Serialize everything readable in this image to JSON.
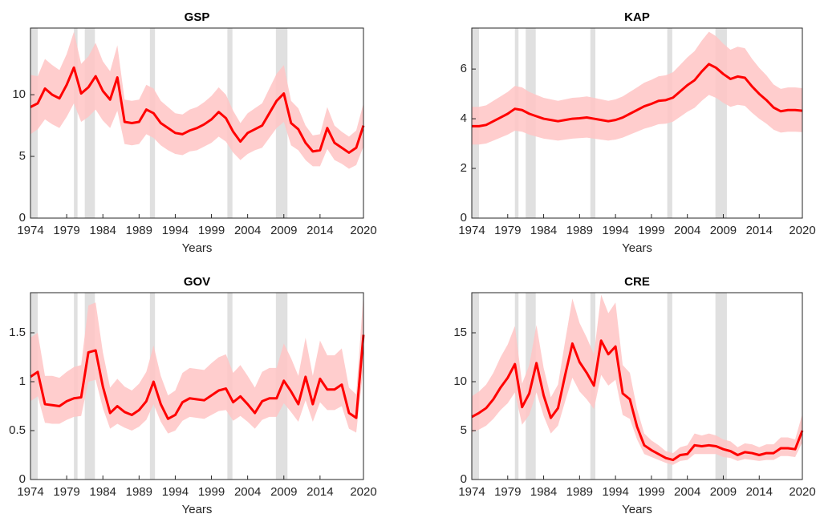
{
  "chart_data": [
    {
      "type": "band-line",
      "title": "GSP",
      "x_label": "Years",
      "color": "#ff0000",
      "band_color": "#ffc4c4",
      "shade_color": "#e0e0e0",
      "x": [
        1974,
        1975,
        1976,
        1977,
        1978,
        1979,
        1980,
        1981,
        1982,
        1983,
        1984,
        1985,
        1986,
        1987,
        1988,
        1989,
        1990,
        1991,
        1992,
        1993,
        1994,
        1995,
        1996,
        1997,
        1998,
        1999,
        2000,
        2001,
        2002,
        2003,
        2004,
        2005,
        2006,
        2007,
        2008,
        2009,
        2010,
        2011,
        2012,
        2013,
        2014,
        2015,
        2016,
        2017,
        2018,
        2019,
        2020
      ],
      "values": [
        9.0,
        9.3,
        10.5,
        10.0,
        9.7,
        10.8,
        12.2,
        10.1,
        10.6,
        11.5,
        10.3,
        9.6,
        11.4,
        7.8,
        7.7,
        7.8,
        8.8,
        8.5,
        7.7,
        7.3,
        6.9,
        6.8,
        7.1,
        7.3,
        7.6,
        8.0,
        8.6,
        8.1,
        7.0,
        6.2,
        6.9,
        7.2,
        7.5,
        8.5,
        9.5,
        10.1,
        7.7,
        7.2,
        6.1,
        5.4,
        5.5,
        7.3,
        6.1,
        5.7,
        5.3,
        5.7,
        7.5
      ],
      "lower": [
        6.8,
        7.2,
        8.0,
        7.6,
        7.3,
        8.2,
        9.3,
        7.8,
        8.2,
        8.8,
        7.9,
        7.3,
        8.7,
        6.0,
        5.9,
        6.0,
        6.8,
        6.5,
        5.9,
        5.5,
        5.2,
        5.1,
        5.4,
        5.5,
        5.8,
        6.1,
        6.6,
        6.2,
        5.3,
        4.7,
        5.2,
        5.5,
        5.7,
        6.5,
        7.3,
        7.8,
        5.9,
        5.5,
        4.7,
        4.2,
        4.2,
        5.6,
        4.7,
        4.4,
        4.0,
        4.3,
        5.8
      ],
      "upper": [
        11.6,
        11.5,
        12.9,
        12.4,
        12.0,
        13.3,
        15.1,
        12.5,
        13.1,
        14.2,
        12.7,
        11.9,
        14.0,
        9.6,
        9.5,
        9.6,
        10.8,
        10.5,
        9.5,
        9.0,
        8.5,
        8.4,
        8.8,
        9.0,
        9.4,
        9.9,
        10.6,
        10.0,
        8.7,
        7.7,
        8.5,
        8.9,
        9.3,
        10.5,
        11.7,
        12.4,
        9.5,
        8.9,
        7.5,
        6.7,
        6.8,
        9.0,
        7.5,
        7.0,
        6.6,
        7.1,
        9.3
      ],
      "shaded_periods": [
        [
          1974,
          1975
        ],
        [
          1980,
          1980.5
        ],
        [
          1981.5,
          1982.9
        ],
        [
          1990.5,
          1991.2
        ],
        [
          2001.2,
          2001.9
        ],
        [
          2007.9,
          2009.5
        ]
      ],
      "xlim": [
        1974,
        2020
      ],
      "xticks": [
        1974,
        1979,
        1984,
        1989,
        1994,
        1999,
        2004,
        2009,
        2014,
        2020
      ],
      "ylim": [
        0,
        15.4
      ],
      "yticks": [
        0,
        5,
        10
      ]
    },
    {
      "type": "band-line",
      "title": "KAP",
      "x_label": "Years",
      "color": "#ff0000",
      "band_color": "#ffc4c4",
      "shade_color": "#e0e0e0",
      "x": [
        1974,
        1975,
        1976,
        1977,
        1978,
        1979,
        1980,
        1981,
        1982,
        1983,
        1984,
        1985,
        1986,
        1987,
        1988,
        1989,
        1990,
        1991,
        1992,
        1993,
        1994,
        1995,
        1996,
        1997,
        1998,
        1999,
        2000,
        2001,
        2002,
        2003,
        2004,
        2005,
        2006,
        2007,
        2008,
        2009,
        2010,
        2011,
        2012,
        2013,
        2014,
        2015,
        2016,
        2017,
        2018,
        2019,
        2020
      ],
      "values": [
        3.7,
        3.7,
        3.75,
        3.9,
        4.05,
        4.2,
        4.4,
        4.35,
        4.2,
        4.1,
        4.0,
        3.95,
        3.9,
        3.95,
        4.0,
        4.02,
        4.05,
        4.0,
        3.95,
        3.9,
        3.95,
        4.05,
        4.2,
        4.35,
        4.5,
        4.6,
        4.72,
        4.75,
        4.85,
        5.1,
        5.35,
        5.55,
        5.9,
        6.2,
        6.05,
        5.8,
        5.6,
        5.7,
        5.65,
        5.3,
        5.0,
        4.75,
        4.45,
        4.3,
        4.35,
        4.35,
        4.32
      ],
      "lower": [
        2.96,
        2.96,
        3.0,
        3.12,
        3.24,
        3.36,
        3.52,
        3.48,
        3.36,
        3.28,
        3.2,
        3.16,
        3.12,
        3.16,
        3.2,
        3.22,
        3.24,
        3.2,
        3.16,
        3.12,
        3.16,
        3.24,
        3.36,
        3.48,
        3.6,
        3.68,
        3.78,
        3.8,
        3.88,
        4.08,
        4.28,
        4.44,
        4.72,
        4.96,
        4.84,
        4.64,
        4.48,
        4.56,
        4.52,
        4.24,
        4.0,
        3.8,
        3.56,
        3.44,
        3.48,
        3.48,
        3.46
      ],
      "upper": [
        4.48,
        4.48,
        4.54,
        4.72,
        4.9,
        5.08,
        5.32,
        5.26,
        5.08,
        4.96,
        4.84,
        4.78,
        4.72,
        4.78,
        4.84,
        4.86,
        4.9,
        4.84,
        4.78,
        4.72,
        4.78,
        4.9,
        5.08,
        5.26,
        5.45,
        5.57,
        5.71,
        5.75,
        5.87,
        6.17,
        6.47,
        6.72,
        7.14,
        7.5,
        7.32,
        7.02,
        6.78,
        6.9,
        6.84,
        6.41,
        6.05,
        5.75,
        5.38,
        5.2,
        5.26,
        5.26,
        5.23
      ],
      "shaded_periods": [
        [
          1974,
          1975
        ],
        [
          1980,
          1980.5
        ],
        [
          1981.5,
          1982.9
        ],
        [
          1990.5,
          1991.2
        ],
        [
          2001.2,
          2001.9
        ],
        [
          2007.9,
          2009.5
        ]
      ],
      "xlim": [
        1974,
        2020
      ],
      "xticks": [
        1974,
        1979,
        1984,
        1989,
        1994,
        1999,
        2004,
        2009,
        2014,
        2020
      ],
      "ylim": [
        0,
        7.65
      ],
      "yticks": [
        0,
        2,
        4,
        6
      ]
    },
    {
      "type": "band-line",
      "title": "GOV",
      "x_label": "Years",
      "color": "#ff0000",
      "band_color": "#ffc4c4",
      "shade_color": "#e0e0e0",
      "x": [
        1974,
        1975,
        1976,
        1977,
        1978,
        1979,
        1980,
        1981,
        1982,
        1983,
        1984,
        1985,
        1986,
        1987,
        1988,
        1989,
        1990,
        1991,
        1992,
        1993,
        1994,
        1995,
        1996,
        1997,
        1998,
        1999,
        2000,
        2001,
        2002,
        2003,
        2004,
        2005,
        2006,
        2007,
        2008,
        2009,
        2010,
        2011,
        2012,
        2013,
        2014,
        2015,
        2016,
        2017,
        2018,
        2019,
        2020
      ],
      "values": [
        1.05,
        1.1,
        0.77,
        0.76,
        0.75,
        0.8,
        0.83,
        0.84,
        1.3,
        1.32,
        0.95,
        0.68,
        0.75,
        0.69,
        0.66,
        0.71,
        0.8,
        1.0,
        0.77,
        0.62,
        0.66,
        0.79,
        0.83,
        0.82,
        0.81,
        0.86,
        0.91,
        0.93,
        0.79,
        0.85,
        0.77,
        0.68,
        0.8,
        0.83,
        0.83,
        1.01,
        0.9,
        0.77,
        1.05,
        0.77,
        1.03,
        0.92,
        0.92,
        0.97,
        0.68,
        0.63,
        1.48
      ],
      "lower": [
        0.8,
        0.85,
        0.58,
        0.57,
        0.57,
        0.61,
        0.64,
        0.65,
        1.0,
        1.02,
        0.73,
        0.52,
        0.57,
        0.53,
        0.5,
        0.54,
        0.61,
        0.77,
        0.59,
        0.47,
        0.5,
        0.6,
        0.64,
        0.63,
        0.62,
        0.66,
        0.7,
        0.71,
        0.6,
        0.65,
        0.59,
        0.52,
        0.61,
        0.64,
        0.64,
        0.78,
        0.69,
        0.59,
        0.81,
        0.59,
        0.79,
        0.71,
        0.71,
        0.75,
        0.52,
        0.48,
        1.14
      ],
      "upper": [
        1.45,
        1.5,
        1.06,
        1.06,
        1.04,
        1.1,
        1.15,
        1.17,
        1.78,
        1.81,
        1.3,
        0.94,
        1.03,
        0.95,
        0.91,
        0.98,
        1.1,
        1.37,
        1.06,
        0.86,
        0.91,
        1.09,
        1.14,
        1.13,
        1.12,
        1.19,
        1.25,
        1.28,
        1.09,
        1.17,
        1.06,
        0.94,
        1.1,
        1.14,
        1.14,
        1.39,
        1.24,
        1.06,
        1.45,
        1.06,
        1.42,
        1.27,
        1.27,
        1.34,
        0.94,
        0.87,
        1.9
      ],
      "shaded_periods": [
        [
          1974,
          1975
        ],
        [
          1980,
          1980.5
        ],
        [
          1981.5,
          1982.9
        ],
        [
          1990.5,
          1991.2
        ],
        [
          2001.2,
          2001.9
        ],
        [
          2007.9,
          2009.5
        ]
      ],
      "xlim": [
        1974,
        2020
      ],
      "xticks": [
        1974,
        1979,
        1984,
        1989,
        1994,
        1999,
        2004,
        2009,
        2014,
        2020
      ],
      "ylim": [
        0,
        1.91
      ],
      "yticks": [
        0,
        0.5,
        1,
        1.5
      ]
    },
    {
      "type": "band-line",
      "title": "CRE",
      "x_label": "Years",
      "color": "#ff0000",
      "band_color": "#ffc4c4",
      "shade_color": "#e0e0e0",
      "x": [
        1974,
        1975,
        1976,
        1977,
        1978,
        1979,
        1980,
        1981,
        1982,
        1983,
        1984,
        1985,
        1986,
        1987,
        1988,
        1989,
        1990,
        1991,
        1992,
        1993,
        1994,
        1995,
        1996,
        1997,
        1998,
        1999,
        2000,
        2001,
        2002,
        2003,
        2004,
        2005,
        2006,
        2007,
        2008,
        2009,
        2010,
        2011,
        2012,
        2013,
        2014,
        2015,
        2016,
        2017,
        2018,
        2019,
        2020
      ],
      "values": [
        6.4,
        6.8,
        7.3,
        8.2,
        9.4,
        10.4,
        11.8,
        7.4,
        8.8,
        11.9,
        8.6,
        6.3,
        7.3,
        10.7,
        13.9,
        12.0,
        10.9,
        9.6,
        14.2,
        12.8,
        13.6,
        8.8,
        8.2,
        5.4,
        3.5,
        3.0,
        2.6,
        2.2,
        2.0,
        2.5,
        2.6,
        3.5,
        3.4,
        3.5,
        3.4,
        3.1,
        2.9,
        2.5,
        2.8,
        2.7,
        2.5,
        2.7,
        2.7,
        3.2,
        3.2,
        3.1,
        5.0
      ],
      "lower": [
        4.8,
        5.1,
        5.5,
        6.2,
        7.1,
        7.8,
        8.9,
        5.6,
        6.6,
        8.9,
        6.5,
        4.7,
        5.5,
        8.0,
        10.4,
        9.0,
        8.2,
        7.2,
        10.7,
        9.6,
        10.2,
        6.6,
        6.2,
        4.1,
        2.6,
        2.3,
        2.0,
        1.7,
        1.5,
        1.9,
        2.0,
        2.6,
        2.6,
        2.6,
        2.6,
        2.3,
        2.2,
        1.9,
        2.1,
        2.0,
        1.9,
        2.0,
        2.0,
        2.4,
        2.4,
        2.3,
        3.8
      ],
      "upper": [
        8.5,
        9.0,
        9.7,
        10.9,
        12.5,
        13.8,
        15.7,
        9.8,
        11.7,
        15.8,
        11.4,
        8.4,
        9.7,
        14.2,
        18.5,
        16.0,
        14.5,
        12.8,
        18.9,
        17.0,
        18.1,
        11.7,
        10.9,
        7.2,
        4.7,
        4.0,
        3.5,
        2.9,
        2.7,
        3.3,
        3.5,
        4.7,
        4.5,
        4.7,
        4.5,
        4.1,
        3.9,
        3.3,
        3.7,
        3.6,
        3.3,
        3.6,
        3.6,
        4.3,
        4.3,
        4.1,
        6.7
      ],
      "shaded_periods": [
        [
          1974,
          1975
        ],
        [
          1980,
          1980.5
        ],
        [
          1981.5,
          1982.9
        ],
        [
          1990.5,
          1991.2
        ],
        [
          2001.2,
          2001.9
        ],
        [
          2007.9,
          2009.5
        ]
      ],
      "xlim": [
        1974,
        2020
      ],
      "xticks": [
        1974,
        1979,
        1984,
        1989,
        1994,
        1999,
        2004,
        2009,
        2014,
        2020
      ],
      "ylim": [
        0,
        19.1
      ],
      "yticks": [
        0,
        5,
        10,
        15
      ]
    }
  ]
}
